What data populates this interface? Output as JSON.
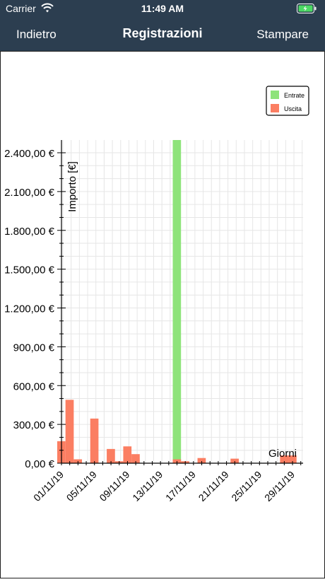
{
  "status": {
    "carrier": "Carrier",
    "time": "11:49 AM"
  },
  "nav": {
    "back_label": "Indietro",
    "title": "Registrazioni",
    "print_label": "Stampare"
  },
  "colors": {
    "entrate": "#8ee37a",
    "uscita": "#fb7e62",
    "bar_bg": "#2c3e50"
  },
  "chart_data": {
    "type": "bar",
    "ylabel": "Importo [€]",
    "xlabel": "Giorni",
    "ylim": [
      0,
      2500
    ],
    "xlim": [
      "2019-11-01",
      "2019-11-30"
    ],
    "yticks": [
      "0,00 €",
      "300,00 €",
      "600,00 €",
      "900,00 €",
      "1.200,00 €",
      "1.500,00 €",
      "1.800,00 €",
      "2.100,00 €",
      "2.400,00 €"
    ],
    "ytick_values": [
      0,
      300,
      600,
      900,
      1200,
      1500,
      1800,
      2100,
      2400
    ],
    "xticks": [
      "01/11/19",
      "05/11/19",
      "09/11/19",
      "13/11/19",
      "17/11/19",
      "21/11/19",
      "25/11/19",
      "29/11/19"
    ],
    "legend_position": "top-right",
    "grid": true,
    "series": [
      {
        "name": "Entrate",
        "color": "#8ee37a",
        "x": [
          "2019-11-15"
        ],
        "values": [
          2525
        ]
      },
      {
        "name": "Uscita",
        "color": "#fb7e62",
        "x": [
          "2019-11-01",
          "2019-11-02",
          "2019-11-03",
          "2019-11-05",
          "2019-11-07",
          "2019-11-08",
          "2019-11-09",
          "2019-11-10",
          "2019-11-15",
          "2019-11-16",
          "2019-11-18",
          "2019-11-22",
          "2019-11-28",
          "2019-11-29"
        ],
        "values": [
          170,
          490,
          30,
          345,
          110,
          15,
          130,
          70,
          30,
          15,
          40,
          35,
          60,
          60
        ]
      }
    ]
  }
}
